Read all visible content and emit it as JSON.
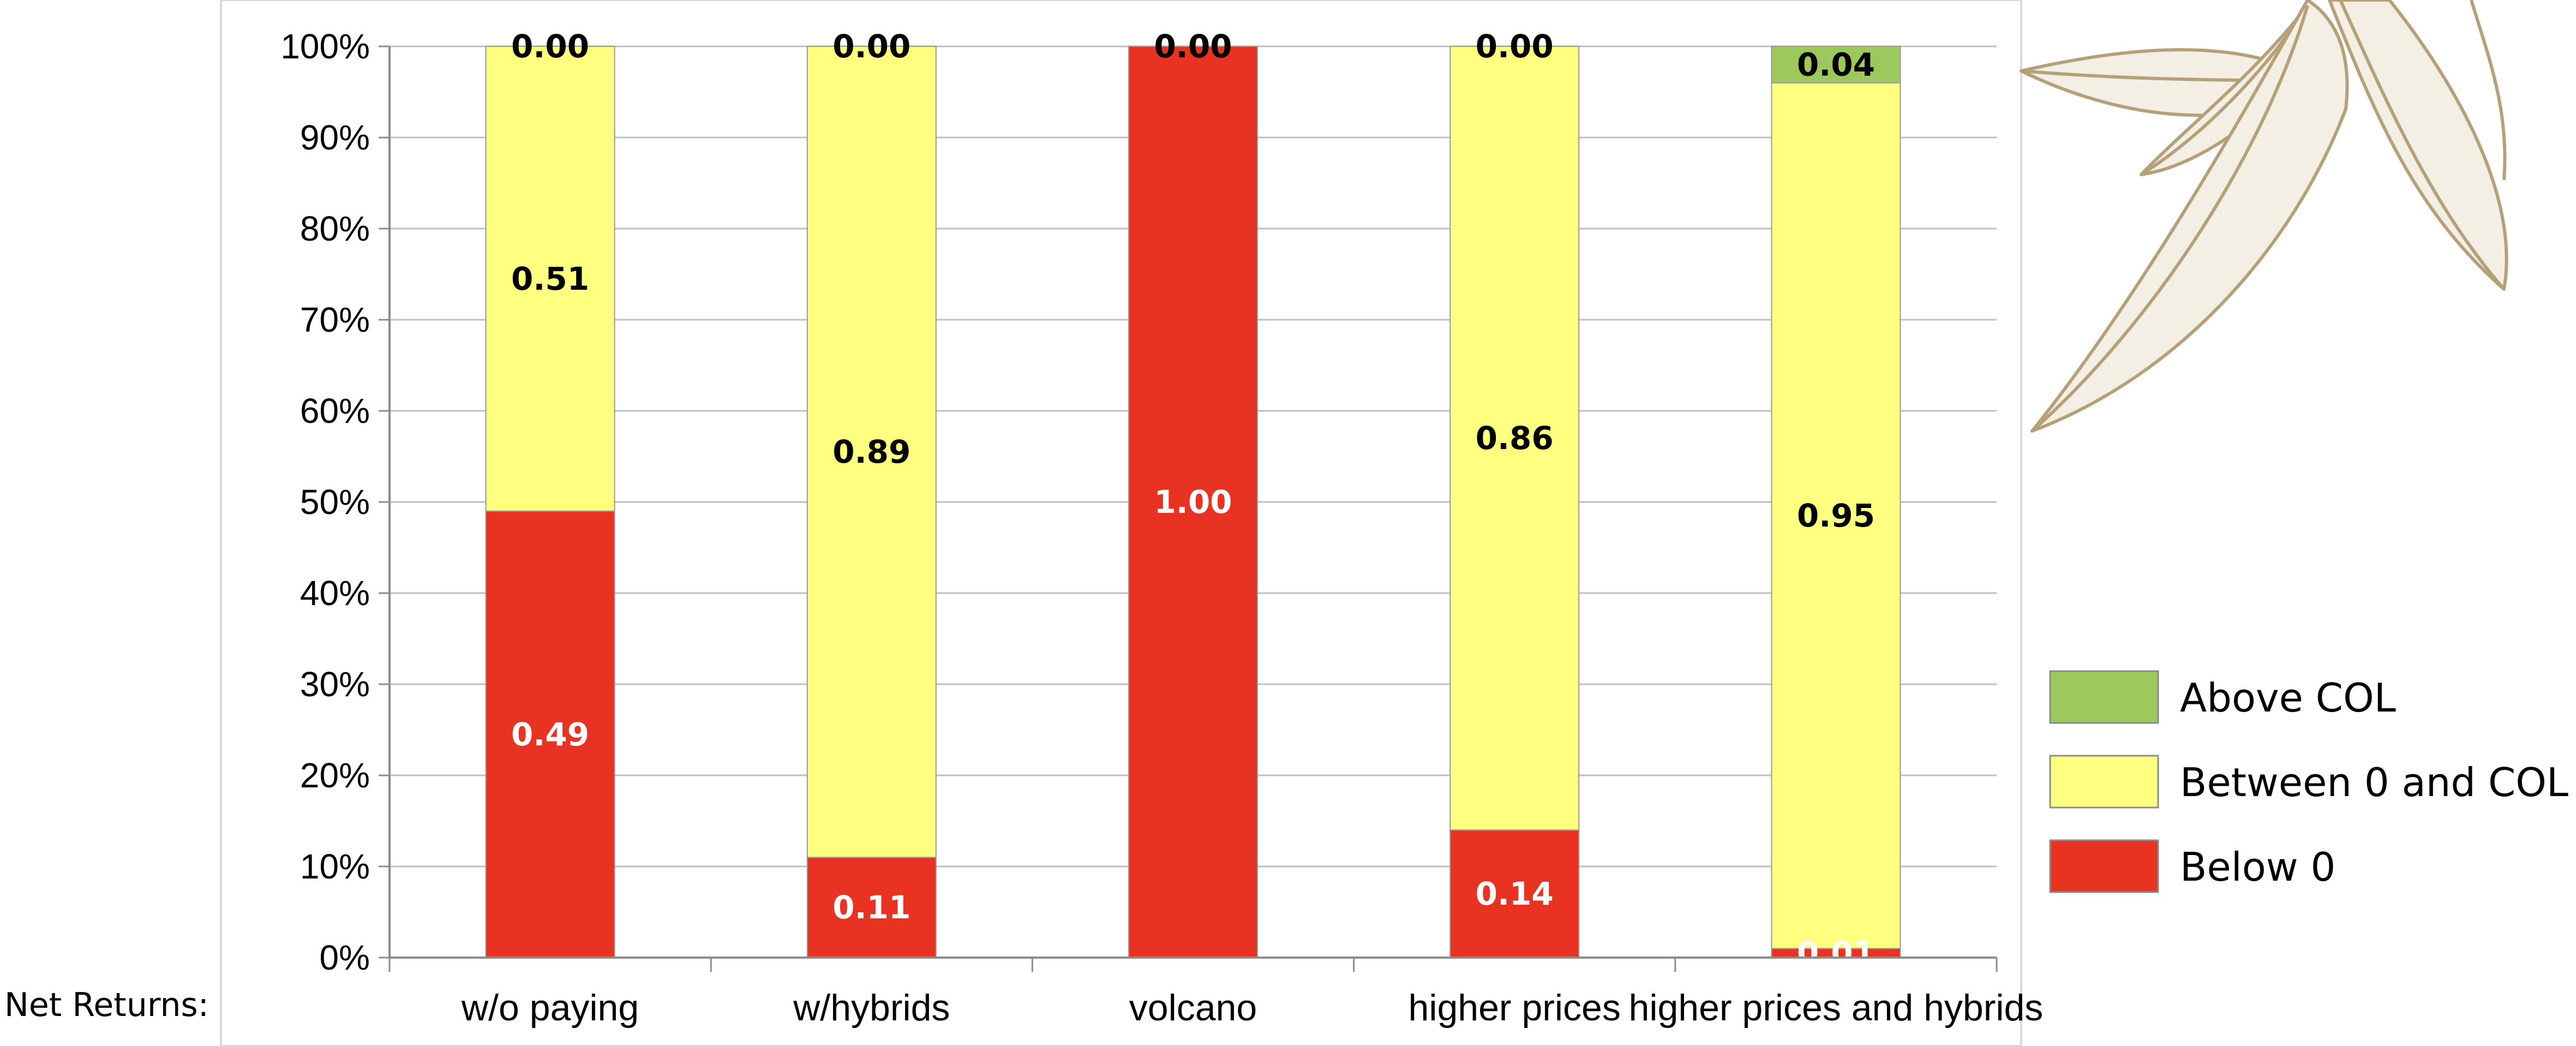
{
  "row_label": "Net Returns:",
  "chart_data": {
    "type": "bar",
    "stacked": true,
    "percent": true,
    "categories": [
      "w/o paying",
      "w/hybrids",
      "volcano",
      "higher prices",
      "higher prices and hybrids"
    ],
    "series": [
      {
        "name": "Below 0",
        "color": "#e83323",
        "values": [
          0.49,
          0.11,
          1.0,
          0.14,
          0.01
        ]
      },
      {
        "name": "Between 0 and COL",
        "color": "#ffff80",
        "values": [
          0.51,
          0.89,
          0.0,
          0.86,
          0.95
        ]
      },
      {
        "name": "Above COL",
        "color": "#9dc85c",
        "values": [
          0.0,
          0.0,
          0.0,
          0.0,
          0.04
        ]
      }
    ],
    "data_labels": [
      [
        "0.49",
        "0.11",
        "1.00",
        "0.14",
        "0.01"
      ],
      [
        "0.51",
        "0.89",
        "0.00",
        "0.86",
        "0.95"
      ],
      [
        "0.00",
        "0.00",
        "0.00",
        "0.00",
        "0.04"
      ]
    ],
    "ylim": [
      0,
      1
    ],
    "y_ticks": [
      "0%",
      "10%",
      "20%",
      "30%",
      "40%",
      "50%",
      "60%",
      "70%",
      "80%",
      "90%",
      "100%"
    ],
    "legend": [
      "Above COL",
      "Between 0 and COL",
      "Below 0"
    ],
    "legend_position": "right",
    "grid": true
  }
}
